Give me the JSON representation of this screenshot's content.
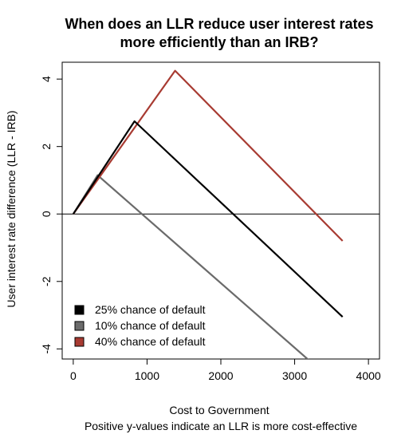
{
  "chart_data": {
    "type": "line",
    "title": "When does an LLR reduce user interest rates more efficiently than an IRB?",
    "title_lines": [
      "When does an LLR reduce user interest rates",
      "more efficiently than an IRB?"
    ],
    "xlabel": "Cost to Government",
    "xlabel_note": "Positive y-values indicate an LLR is more cost-effective",
    "ylabel": "User interest rate difference (LLR - IRB)",
    "xlim": [
      -150,
      4150
    ],
    "ylim": [
      -4.3,
      4.5
    ],
    "xticks": [
      "0",
      "1000",
      "2000",
      "3000",
      "4000"
    ],
    "yticks": [
      "-4",
      "-2",
      "0",
      "2",
      "4"
    ],
    "grid": false,
    "legend_position": "bottom-left",
    "reference_line_y": 0,
    "series": [
      {
        "name": "25% chance of default",
        "color": "#000000",
        "x": [
          0,
          830,
          3650
        ],
        "y": [
          0,
          2.75,
          -3.05
        ]
      },
      {
        "name": "10% chance of default",
        "color": "#6b6b6b",
        "x": [
          0,
          330,
          3200
        ],
        "y": [
          0,
          1.15,
          -4.35
        ]
      },
      {
        "name": "40% chance of default",
        "color": "#a83b32",
        "x": [
          0,
          1380,
          3650
        ],
        "y": [
          0,
          4.25,
          -0.8
        ]
      }
    ]
  }
}
